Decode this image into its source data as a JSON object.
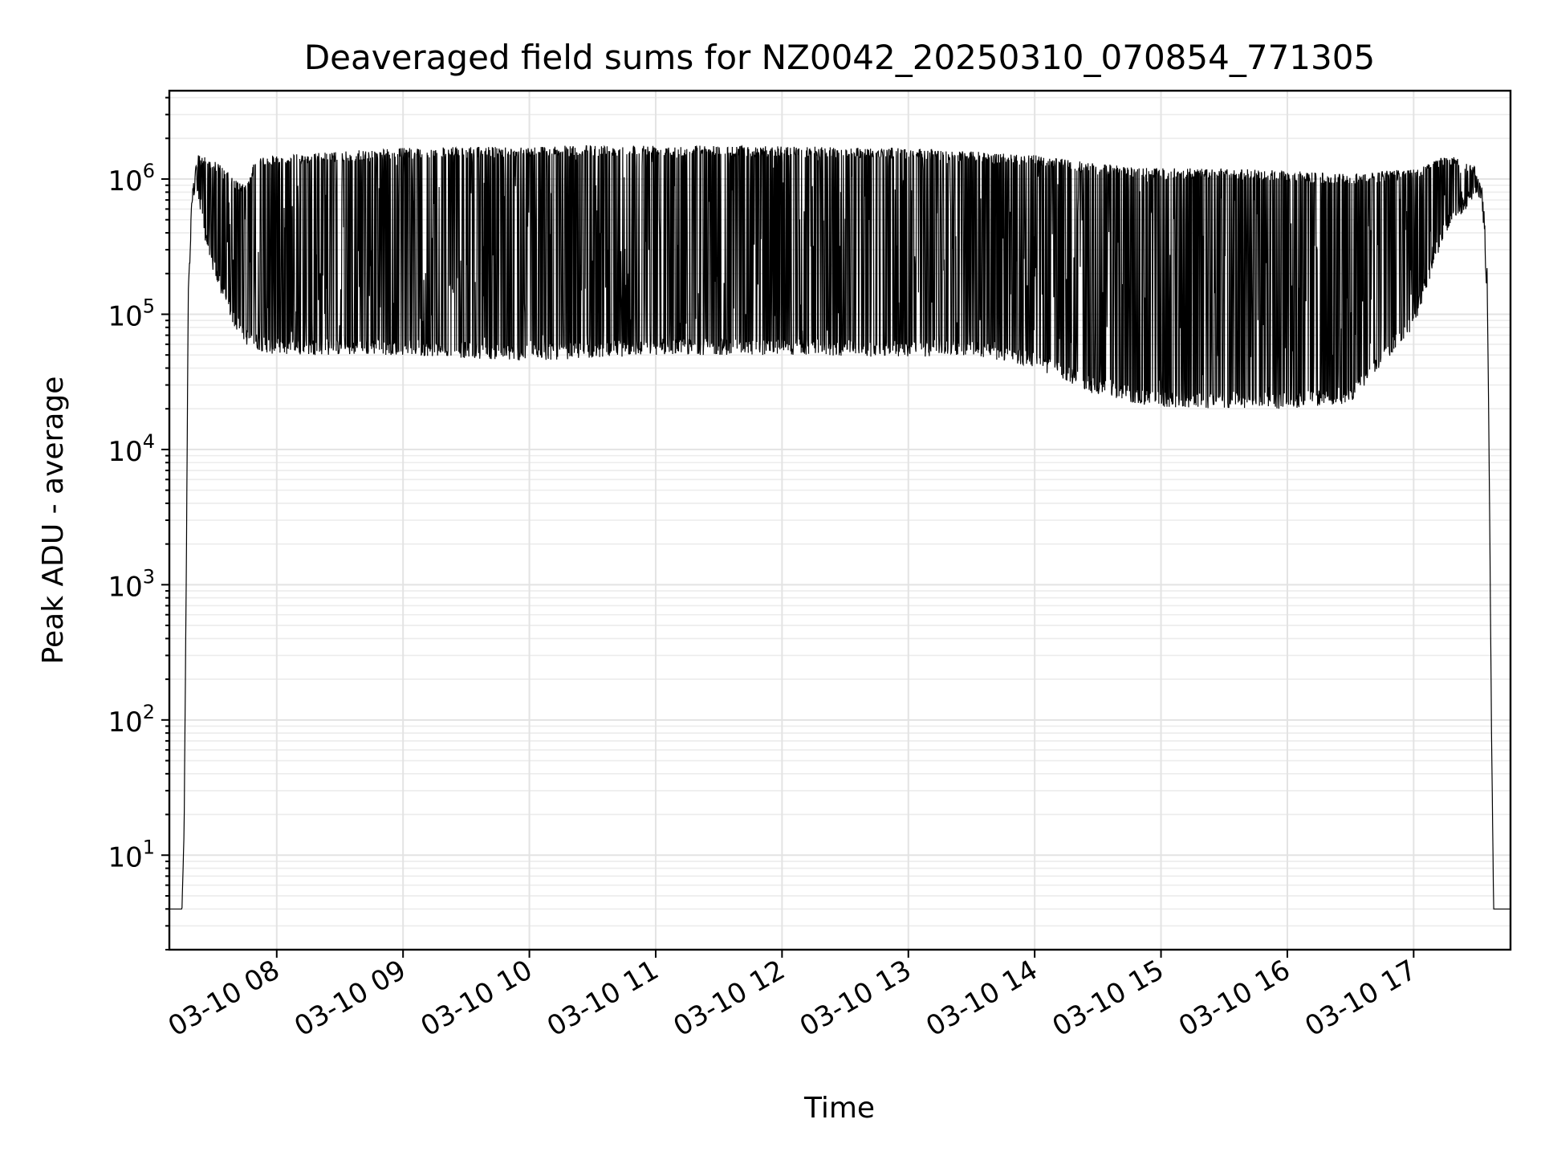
{
  "chart_data": {
    "type": "line",
    "title": "Deaveraged field sums for NZ0042_20250310_070854_771305",
    "xlabel": "Time",
    "ylabel": "Peak ADU - average",
    "yscale": "log",
    "ylim": [
      2,
      4500000
    ],
    "xlim": [
      "2025-03-10 07:09",
      "2025-03-10 17:46"
    ],
    "grid": true,
    "x_tick_labels": [
      "03-10 08",
      "03-10 09",
      "03-10 10",
      "03-10 11",
      "03-10 12",
      "03-10 13",
      "03-10 14",
      "03-10 15",
      "03-10 16",
      "03-10 17"
    ],
    "y_tick_labels": [
      {
        "base": "10",
        "exp": "1"
      },
      {
        "base": "10",
        "exp": "2"
      },
      {
        "base": "10",
        "exp": "3"
      },
      {
        "base": "10",
        "exp": "4"
      },
      {
        "base": "10",
        "exp": "5"
      },
      {
        "base": "10",
        "exp": "6"
      }
    ],
    "series": [
      {
        "x": [
          "2025-03-10 07:09",
          "2025-03-10 07:15",
          "2025-03-10 07:16",
          "2025-03-10 07:17",
          "2025-03-10 07:18",
          "2025-03-10 07:20",
          "2025-03-10 07:22",
          "2025-03-10 07:25",
          "2025-03-10 07:30",
          "2025-03-10 07:35",
          "2025-03-10 07:40",
          "2025-03-10 07:45",
          "2025-03-10 07:50",
          "2025-03-10 07:55",
          "2025-03-10 08:00",
          "2025-03-10 08:30",
          "2025-03-10 09:00",
          "2025-03-10 10:00",
          "2025-03-10 11:00",
          "2025-03-10 12:00",
          "2025-03-10 13:00",
          "2025-03-10 13:30",
          "2025-03-10 14:00",
          "2025-03-10 14:30",
          "2025-03-10 15:00",
          "2025-03-10 15:30",
          "2025-03-10 16:00",
          "2025-03-10 16:30",
          "2025-03-10 17:00",
          "2025-03-10 17:15",
          "2025-03-10 17:25",
          "2025-03-10 17:30",
          "2025-03-10 17:33",
          "2025-03-10 17:35",
          "2025-03-10 17:36",
          "2025-03-10 17:37",
          "2025-03-10 17:38",
          "2025-03-10 17:46"
        ],
        "y": [
          4,
          4,
          15,
          1000,
          150000,
          800000,
          1300000,
          1100000,
          700000,
          400000,
          200000,
          100000,
          80000,
          70000,
          65000,
          70000,
          65000,
          60000,
          65000,
          75000,
          70000,
          70000,
          100000,
          35000,
          25000,
          25000,
          22000,
          30000,
          200000,
          700000,
          900000,
          1000000,
          600000,
          100000,
          5000,
          75,
          4,
          4
        ],
        "upper_envelope": [
          4,
          4,
          15,
          1000,
          150000,
          800000,
          1500000,
          1500000,
          1400000,
          1200000,
          1000000,
          900000,
          1400000,
          1500000,
          1500000,
          1600000,
          1700000,
          1750000,
          1800000,
          1750000,
          1700000,
          1600000,
          1500000,
          1300000,
          1200000,
          1200000,
          1150000,
          1100000,
          1200000,
          1500000,
          1400000,
          1200000,
          800000,
          200000,
          5000,
          75,
          4,
          4
        ],
        "lower_envelope": [
          4,
          4,
          15,
          1000,
          150000,
          700000,
          800000,
          400000,
          200000,
          120000,
          80000,
          60000,
          55000,
          52000,
          50000,
          50000,
          50000,
          45000,
          50000,
          50000,
          48000,
          50000,
          40000,
          25000,
          20000,
          20000,
          20000,
          22000,
          80000,
          400000,
          600000,
          800000,
          500000,
          100000,
          5000,
          75,
          4,
          4
        ]
      }
    ]
  }
}
